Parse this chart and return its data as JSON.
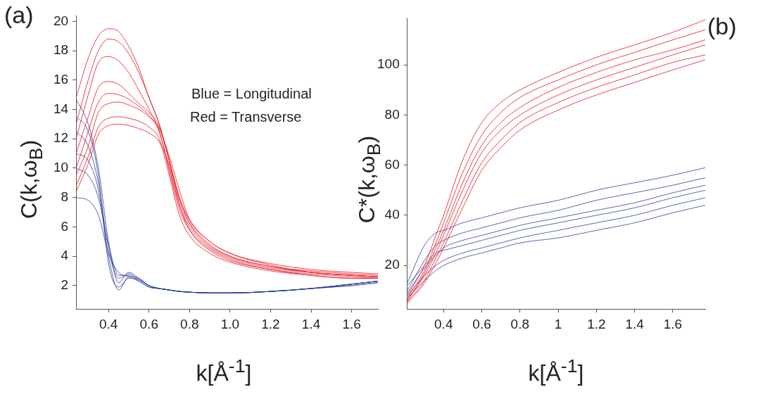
{
  "chart_data": [
    {
      "type": "line",
      "title": "(a)",
      "xlabel": "k[Å$^{-1}$]",
      "ylabel": "C(k,ω$_{B}$)",
      "annotations": [
        "Blue = Longitudinal",
        "Red = Transverse"
      ],
      "x": [
        0.24,
        0.3,
        0.35,
        0.4,
        0.45,
        0.5,
        0.55,
        0.6,
        0.65,
        0.7,
        0.75,
        0.8,
        0.9,
        1.0,
        1.2,
        1.4,
        1.6,
        1.73
      ],
      "xlim": [
        0.24,
        1.73
      ],
      "ylim": [
        0.4,
        20.4
      ],
      "xticks": [
        0.4,
        0.6,
        0.8,
        {
          "value": 1,
          "label": "1.0"
        },
        1.2,
        1.4,
        1.6
      ],
      "yticks": [
        2,
        4,
        6,
        8,
        10,
        12,
        14,
        16,
        18,
        20
      ],
      "marker": "none",
      "line_style": "solid",
      "legend": false,
      "series": [
        {
          "color": "#e8101c",
          "values": [
            14.8,
            17.5,
            19.0,
            19.5,
            19.3,
            18.3,
            16.8,
            14.8,
            13.0,
            10.5,
            8.0,
            6.5,
            5.0,
            4.2,
            3.5,
            3.1,
            2.9,
            2.8
          ]
        },
        {
          "color": "#e8101c",
          "values": [
            13.0,
            16.0,
            18.0,
            18.8,
            18.6,
            17.8,
            16.5,
            14.8,
            13.0,
            10.5,
            8.0,
            6.3,
            4.8,
            4.0,
            3.3,
            3.0,
            2.8,
            2.7
          ]
        },
        {
          "color": "#e8101c",
          "values": [
            12.0,
            15.0,
            17.2,
            17.6,
            17.3,
            16.5,
            15.3,
            14.0,
            12.5,
            10.0,
            7.5,
            6.0,
            4.6,
            3.9,
            3.2,
            2.9,
            2.7,
            2.6
          ]
        },
        {
          "color": "#e8101c",
          "values": [
            11.0,
            13.5,
            15.5,
            15.9,
            15.7,
            15.1,
            14.4,
            13.8,
            12.8,
            10.5,
            7.8,
            6.2,
            4.7,
            4.0,
            3.3,
            2.9,
            2.7,
            2.6
          ]
        },
        {
          "color": "#e8101c",
          "values": [
            10.0,
            12.5,
            14.5,
            15.1,
            15.0,
            14.7,
            14.2,
            13.6,
            12.5,
            9.8,
            7.2,
            5.8,
            4.5,
            3.8,
            3.1,
            2.8,
            2.6,
            2.5
          ]
        },
        {
          "color": "#e8101c",
          "values": [
            9.5,
            11.5,
            13.8,
            14.4,
            14.5,
            14.3,
            14.0,
            13.5,
            12.7,
            10.8,
            8.5,
            6.5,
            5.0,
            4.2,
            3.4,
            2.9,
            2.7,
            2.6
          ]
        },
        {
          "color": "#e8101c",
          "values": [
            8.8,
            10.8,
            12.8,
            13.4,
            13.5,
            13.4,
            13.2,
            12.8,
            12.0,
            9.5,
            6.8,
            5.4,
            4.2,
            3.6,
            3.0,
            2.7,
            2.5,
            2.5
          ]
        },
        {
          "color": "#e8101c",
          "values": [
            8.4,
            10.3,
            12.3,
            12.9,
            13.0,
            12.9,
            12.7,
            12.4,
            11.8,
            10.2,
            7.5,
            5.8,
            4.4,
            3.7,
            3.1,
            2.7,
            2.5,
            2.5
          ]
        },
        {
          "color": "#2e3f9e",
          "values": [
            14.7,
            13.0,
            10.0,
            5.0,
            2.2,
            2.9,
            2.5,
            2.0,
            1.8,
            1.7,
            1.6,
            1.55,
            1.5,
            1.5,
            1.6,
            1.8,
            2.1,
            2.3
          ]
        },
        {
          "color": "#2e3f9e",
          "values": [
            12.5,
            11.5,
            9.0,
            4.5,
            2.5,
            2.8,
            2.4,
            2.0,
            1.8,
            1.7,
            1.6,
            1.55,
            1.5,
            1.5,
            1.6,
            1.8,
            2.1,
            2.3
          ]
        },
        {
          "color": "#2e3f9e",
          "values": [
            11.0,
            10.5,
            8.5,
            4.0,
            1.7,
            2.6,
            2.5,
            2.0,
            1.8,
            1.7,
            1.6,
            1.55,
            1.5,
            1.5,
            1.6,
            1.8,
            2.1,
            2.3
          ]
        },
        {
          "color": "#2e3f9e",
          "values": [
            10.0,
            9.5,
            8.0,
            4.8,
            2.7,
            2.7,
            2.3,
            1.9,
            1.8,
            1.7,
            1.6,
            1.55,
            1.5,
            1.5,
            1.6,
            1.8,
            2.0,
            2.2
          ]
        },
        {
          "color": "#2e3f9e",
          "values": [
            8.0,
            7.8,
            6.8,
            4.2,
            2.9,
            2.6,
            2.3,
            1.9,
            1.8,
            1.7,
            1.6,
            1.55,
            1.5,
            1.5,
            1.6,
            1.8,
            2.0,
            2.2
          ]
        },
        {
          "color": "#2e3f9e",
          "values": [
            13.5,
            12.5,
            9.5,
            3.5,
            1.9,
            2.5,
            2.4,
            2.0,
            1.8,
            1.7,
            1.6,
            1.55,
            1.5,
            1.5,
            1.6,
            1.8,
            2.1,
            2.3
          ]
        }
      ]
    },
    {
      "type": "line",
      "title": "(b)",
      "xlabel": "k[Å$^{-1}$]",
      "ylabel": "C*(k,ω$_{B}$)",
      "x": [
        0.21,
        0.3,
        0.36,
        0.4,
        0.5,
        0.6,
        0.7,
        0.8,
        1.0,
        1.2,
        1.4,
        1.6,
        1.77
      ],
      "xlim": [
        0.21,
        1.77
      ],
      "ylim": [
        2.6,
        118.6
      ],
      "xticks": [
        0.4,
        0.6,
        0.8,
        1,
        1.2,
        1.4,
        1.6
      ],
      "yticks": [
        20,
        40,
        60,
        80,
        100
      ],
      "marker": "none",
      "line_style": "solid",
      "legend": false,
      "series": [
        {
          "color": "#e8101c",
          "values": [
            8,
            20,
            32,
            40,
            62,
            77,
            85,
            90,
            97,
            103,
            108,
            113,
            118
          ]
        },
        {
          "color": "#e8101c",
          "values": [
            7,
            18,
            29,
            37,
            57,
            72,
            81,
            87,
            94,
            100,
            105,
            110,
            114
          ]
        },
        {
          "color": "#e8101c",
          "values": [
            6,
            17,
            27,
            34,
            53,
            68,
            77,
            83,
            91,
            97,
            102,
            106,
            110
          ]
        },
        {
          "color": "#e8101c",
          "values": [
            6,
            16,
            25,
            32,
            50,
            65,
            74,
            80,
            88,
            94,
            99,
            104,
            108
          ]
        },
        {
          "color": "#e8101c",
          "values": [
            5.5,
            14,
            23,
            29,
            46,
            61,
            70,
            77,
            85,
            91,
            96,
            101,
            104
          ]
        },
        {
          "color": "#e8101c",
          "values": [
            5,
            13,
            21,
            27,
            43,
            58,
            67,
            74,
            82,
            88,
            93,
            98,
            102
          ]
        },
        {
          "color": "#2e3f9e",
          "values": [
            13,
            28,
            33,
            34,
            37,
            39,
            41,
            43,
            46,
            50,
            53,
            56,
            59
          ]
        },
        {
          "color": "#2e3f9e",
          "values": [
            10,
            22,
            28,
            30,
            33,
            35,
            37,
            39,
            42,
            46,
            49,
            52,
            55
          ]
        },
        {
          "color": "#2e3f9e",
          "values": [
            9,
            19,
            24,
            27,
            30,
            32,
            34,
            36,
            39,
            42,
            45,
            49,
            52
          ]
        },
        {
          "color": "#2e3f9e",
          "values": [
            8,
            16,
            20,
            22,
            25,
            27,
            29,
            31,
            34,
            37,
            40,
            44,
            47
          ]
        },
        {
          "color": "#2e3f9e",
          "values": [
            7,
            14,
            18,
            20,
            23,
            25,
            27,
            29,
            31,
            34,
            37,
            41,
            44
          ]
        },
        {
          "color": "#2e3f9e",
          "values": [
            12,
            20,
            25,
            26,
            28,
            30,
            32,
            34,
            37,
            40,
            43,
            47,
            50
          ]
        }
      ]
    }
  ]
}
